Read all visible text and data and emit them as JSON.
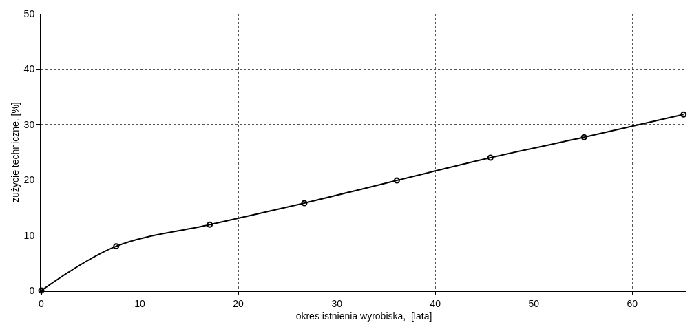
{
  "chart_data": {
    "type": "line",
    "xlabel": "okres istnienia wyrobiska,  [lata]",
    "ylabel": "zużycie techniczne, [%]",
    "x": [
      0,
      7.6,
      17.1,
      26.7,
      36.1,
      45.6,
      55.1,
      65.2
    ],
    "series": [
      {
        "color": "#000000",
        "values": [
          0,
          8.0,
          11.9,
          15.8,
          19.9,
          24.0,
          27.7,
          31.8
        ]
      }
    ],
    "xlim": [
      0,
      65.5
    ],
    "xticks": [
      0,
      10,
      20,
      30,
      40,
      50,
      60
    ],
    "ylim": [
      0,
      50
    ],
    "yticks": [
      0,
      10,
      20,
      30,
      40,
      50
    ],
    "grid": true,
    "marker": "circle",
    "line_style": "solid"
  }
}
